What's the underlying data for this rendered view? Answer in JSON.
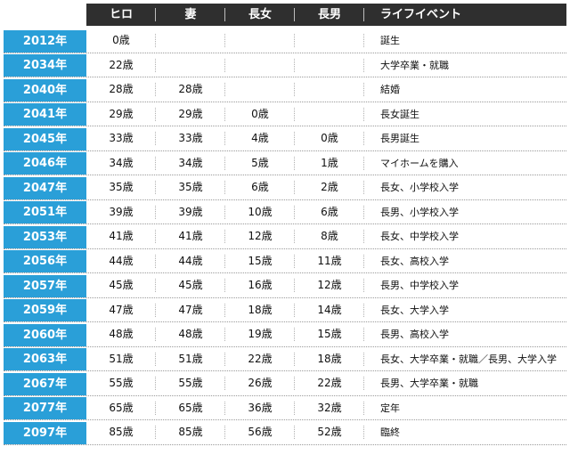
{
  "header": {
    "hiro": "ヒロ",
    "wife": "妻",
    "eldest_daughter": "長女",
    "eldest_son": "長男",
    "life_event": "ライフイベント"
  },
  "colors": {
    "header_bg": "#2f2f2f",
    "year_bg": "#2a9fd8"
  },
  "rows": [
    {
      "year": "2012年",
      "hiro": "0歳",
      "wife": "",
      "daughter": "",
      "son": "",
      "event": "誕生"
    },
    {
      "year": "2034年",
      "hiro": "22歳",
      "wife": "",
      "daughter": "",
      "son": "",
      "event": "大学卒業・就職"
    },
    {
      "year": "2040年",
      "hiro": "28歳",
      "wife": "28歳",
      "daughter": "",
      "son": "",
      "event": "結婚"
    },
    {
      "year": "2041年",
      "hiro": "29歳",
      "wife": "29歳",
      "daughter": "0歳",
      "son": "",
      "event": "長女誕生"
    },
    {
      "year": "2045年",
      "hiro": "33歳",
      "wife": "33歳",
      "daughter": "4歳",
      "son": "0歳",
      "event": "長男誕生"
    },
    {
      "year": "2046年",
      "hiro": "34歳",
      "wife": "34歳",
      "daughter": "5歳",
      "son": "1歳",
      "event": "マイホームを購入"
    },
    {
      "year": "2047年",
      "hiro": "35歳",
      "wife": "35歳",
      "daughter": "6歳",
      "son": "2歳",
      "event": "長女、小学校入学"
    },
    {
      "year": "2051年",
      "hiro": "39歳",
      "wife": "39歳",
      "daughter": "10歳",
      "son": "6歳",
      "event": "長男、小学校入学"
    },
    {
      "year": "2053年",
      "hiro": "41歳",
      "wife": "41歳",
      "daughter": "12歳",
      "son": "8歳",
      "event": "長女、中学校入学"
    },
    {
      "year": "2056年",
      "hiro": "44歳",
      "wife": "44歳",
      "daughter": "15歳",
      "son": "11歳",
      "event": "長女、高校入学"
    },
    {
      "year": "2057年",
      "hiro": "45歳",
      "wife": "45歳",
      "daughter": "16歳",
      "son": "12歳",
      "event": "長男、中学校入学"
    },
    {
      "year": "2059年",
      "hiro": "47歳",
      "wife": "47歳",
      "daughter": "18歳",
      "son": "14歳",
      "event": "長女、大学入学"
    },
    {
      "year": "2060年",
      "hiro": "48歳",
      "wife": "48歳",
      "daughter": "19歳",
      "son": "15歳",
      "event": "長男、高校入学"
    },
    {
      "year": "2063年",
      "hiro": "51歳",
      "wife": "51歳",
      "daughter": "22歳",
      "son": "18歳",
      "event": "長女、大学卒業・就職／長男、大学入学"
    },
    {
      "year": "2067年",
      "hiro": "55歳",
      "wife": "55歳",
      "daughter": "26歳",
      "son": "22歳",
      "event": "長男、大学卒業・就職"
    },
    {
      "year": "2077年",
      "hiro": "65歳",
      "wife": "65歳",
      "daughter": "36歳",
      "son": "32歳",
      "event": "定年"
    },
    {
      "year": "2097年",
      "hiro": "85歳",
      "wife": "85歳",
      "daughter": "56歳",
      "son": "52歳",
      "event": "臨終"
    }
  ]
}
